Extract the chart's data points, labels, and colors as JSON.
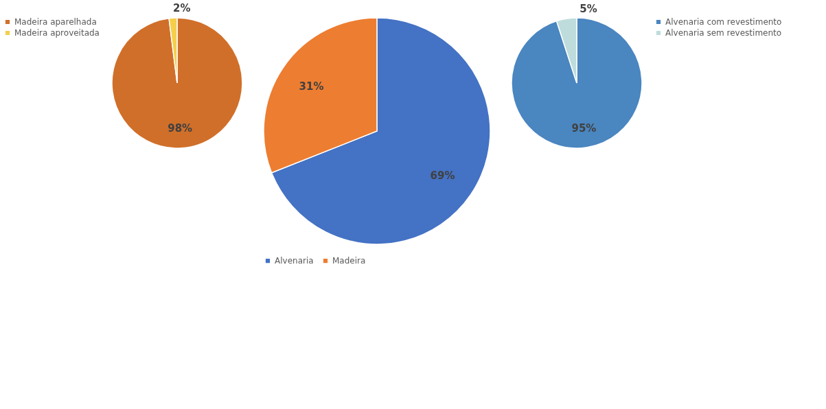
{
  "chart_data": [
    {
      "type": "pie",
      "categories": [
        "Madeira aparelhada",
        "Madeira aproveitada"
      ],
      "values": [
        98,
        2
      ],
      "colors": [
        "#d06f2a",
        "#f5cf4a"
      ],
      "value_labels": [
        "98%",
        "2%"
      ],
      "legend": "left"
    },
    {
      "type": "pie",
      "categories": [
        "Alvenaria",
        "Madeira"
      ],
      "values": [
        69,
        31
      ],
      "colors": [
        "#4472c4",
        "#ed7d31"
      ],
      "value_labels": [
        "69%",
        "31%"
      ],
      "legend": "bottom"
    },
    {
      "type": "pie",
      "categories": [
        "Alvenaria com revestimento",
        "Alvenaria sem revestimento"
      ],
      "values": [
        95,
        5
      ],
      "colors": [
        "#4a86c0",
        "#bfdcdc"
      ],
      "value_labels": [
        "95%",
        "5%"
      ],
      "legend": "right"
    }
  ]
}
